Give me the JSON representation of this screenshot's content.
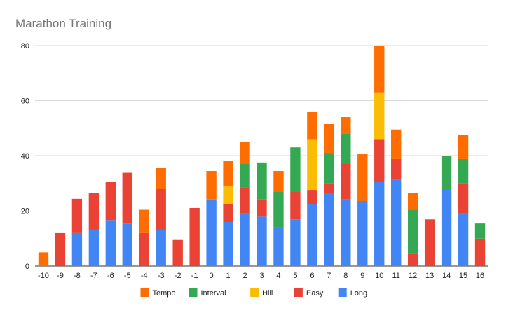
{
  "chart_data": {
    "type": "bar",
    "stacked": true,
    "title": "Marathon Training",
    "xlabel": "",
    "ylabel": "",
    "ylim": [
      0,
      80
    ],
    "yticks": [
      0,
      20,
      40,
      60,
      80
    ],
    "grid": true,
    "legend_position": "bottom",
    "categories": [
      "-10",
      "-9",
      "-8",
      "-7",
      "-6",
      "-5",
      "-4",
      "-3",
      "-2",
      "-1",
      "0",
      "1",
      "2",
      "3",
      "4",
      "5",
      "6",
      "7",
      "8",
      "9",
      "10",
      "11",
      "12",
      "13",
      "14",
      "15",
      "16"
    ],
    "series": [
      {
        "name": "Long",
        "color": "#4285f4",
        "values": [
          0,
          0,
          12,
          13,
          16.5,
          15.5,
          0,
          13,
          0,
          0,
          24,
          16,
          19,
          18,
          14,
          17,
          22.5,
          26.5,
          24,
          23.5,
          30.5,
          31.5,
          0,
          0,
          28,
          19,
          0
        ]
      },
      {
        "name": "Easy",
        "color": "#ea4335",
        "values": [
          0,
          12,
          12.5,
          13.5,
          14,
          18.5,
          12,
          15,
          9.5,
          21,
          0,
          6.5,
          9.5,
          6,
          0,
          10,
          5,
          3.5,
          13,
          0,
          15.5,
          7.5,
          4.5,
          17,
          0,
          11,
          10
        ]
      },
      {
        "name": "Hill",
        "color": "#fbbc04",
        "values": [
          0,
          0,
          0,
          0,
          0,
          0,
          0,
          0,
          0,
          0,
          0,
          6.5,
          0,
          0,
          0,
          0,
          18.5,
          0,
          0,
          0,
          17,
          0,
          0,
          0,
          0,
          0,
          0
        ]
      },
      {
        "name": "Interval",
        "color": "#34a853",
        "values": [
          0,
          0,
          0,
          0,
          0,
          0,
          0,
          0,
          0,
          0,
          0,
          0,
          8.5,
          13.5,
          13,
          16,
          0,
          11,
          11,
          0,
          0,
          0,
          16,
          0,
          12,
          9,
          5.5
        ]
      },
      {
        "name": "Tempo",
        "color": "#ff6d01",
        "values": [
          5,
          0,
          0,
          0,
          0,
          0,
          8.5,
          7.5,
          0,
          0,
          10.5,
          9,
          8,
          0,
          7.5,
          0,
          10,
          10.5,
          6,
          17,
          17,
          10.5,
          6,
          0,
          0,
          8.5,
          0
        ]
      }
    ],
    "legend_order": [
      "Tempo",
      "Interval",
      "Hill",
      "Easy",
      "Long"
    ]
  }
}
